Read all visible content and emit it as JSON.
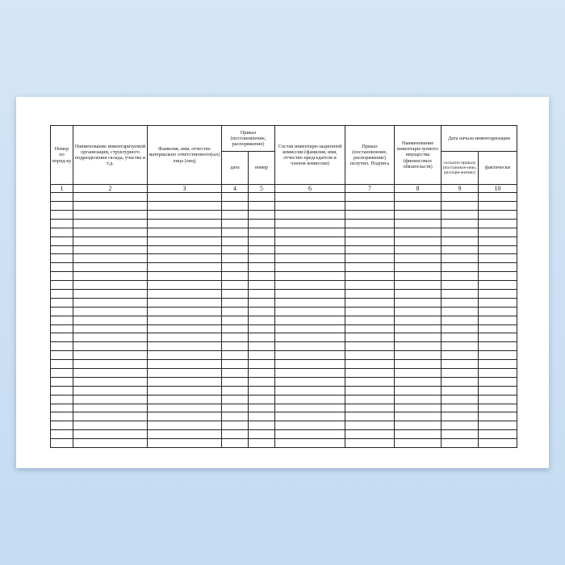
{
  "headers": {
    "c1": "Номер по поряд-ку",
    "c2": "Наименование инвентаризуемой организации, структурного подразделения склада, участка и т.д.",
    "c3": "Фамилия, имя, отчество материально ответственного(ых) лица (лиц)",
    "c45": "Приказ (постановление, распоряжение)",
    "c4": "дата",
    "c5": "номер",
    "c6": "Состав инвентари-зационной комиссии (фамилия, имя, отчество председателя и членов комиссии)",
    "c7": "Приказ (постановление, распоряжение) получил. Подпись",
    "c8": "Наименование инвентари-зуемого имущества (финансовых обязательств)",
    "c910": "Дата начала инвентаризации",
    "c9": "согласно приказу (постановле-нию, распоря-жению)",
    "c10": "фактически"
  },
  "column_numbers": [
    "1",
    "2",
    "3",
    "4",
    "5",
    "6",
    "7",
    "8",
    "9",
    "10"
  ],
  "empty_rows": 29
}
